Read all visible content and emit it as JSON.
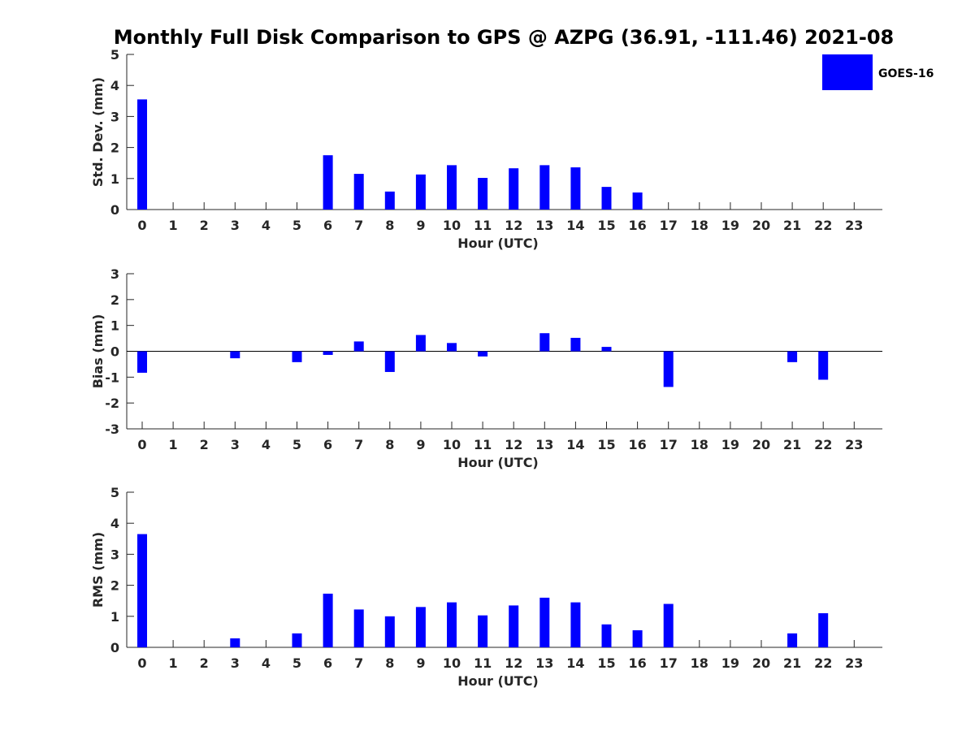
{
  "figure": {
    "title": "Monthly Full Disk Comparison to GPS @ AZPG (36.91, -111.46) 2021-08"
  },
  "legend": {
    "label": "GOES-16",
    "color": "#0000ff"
  },
  "chart_data": [
    {
      "type": "bar",
      "ylabel": "Std. Dev. (mm)",
      "xlabel": "Hour (UTC)",
      "ylim": [
        0,
        5
      ],
      "yticks": [
        0,
        1,
        2,
        3,
        4,
        5
      ],
      "categories": [
        "0",
        "1",
        "2",
        "3",
        "4",
        "5",
        "6",
        "7",
        "8",
        "9",
        "10",
        "11",
        "12",
        "13",
        "14",
        "15",
        "16",
        "17",
        "18",
        "19",
        "20",
        "21",
        "22",
        "23"
      ],
      "series": [
        {
          "name": "GOES-16",
          "values": [
            3.55,
            0,
            0,
            0,
            0,
            0,
            1.75,
            1.15,
            0.58,
            1.13,
            1.43,
            1.02,
            1.33,
            1.43,
            1.36,
            0.73,
            0.55,
            0,
            0,
            0,
            0,
            0,
            0,
            0
          ]
        }
      ]
    },
    {
      "type": "bar",
      "ylabel": "Bias (mm)",
      "xlabel": "Hour (UTC)",
      "ylim": [
        -3,
        3
      ],
      "yticks": [
        -3,
        -2,
        -1,
        0,
        1,
        2,
        3
      ],
      "zero_line": true,
      "categories": [
        "0",
        "1",
        "2",
        "3",
        "4",
        "5",
        "6",
        "7",
        "8",
        "9",
        "10",
        "11",
        "12",
        "13",
        "14",
        "15",
        "16",
        "17",
        "18",
        "19",
        "20",
        "21",
        "22",
        "23"
      ],
      "series": [
        {
          "name": "GOES-16",
          "values": [
            -0.83,
            0,
            0,
            -0.27,
            0,
            -0.42,
            -0.14,
            0.38,
            -0.8,
            0.63,
            0.32,
            -0.2,
            0,
            0.7,
            0.52,
            0.17,
            0,
            -1.38,
            0,
            0,
            0,
            -0.42,
            -1.1,
            0
          ]
        }
      ]
    },
    {
      "type": "bar",
      "ylabel": "RMS (mm)",
      "xlabel": "Hour (UTC)",
      "ylim": [
        0,
        5
      ],
      "yticks": [
        0,
        1,
        2,
        3,
        4,
        5
      ],
      "categories": [
        "0",
        "1",
        "2",
        "3",
        "4",
        "5",
        "6",
        "7",
        "8",
        "9",
        "10",
        "11",
        "12",
        "13",
        "14",
        "15",
        "16",
        "17",
        "18",
        "19",
        "20",
        "21",
        "22",
        "23"
      ],
      "series": [
        {
          "name": "GOES-16",
          "values": [
            3.65,
            0,
            0,
            0.29,
            0,
            0.45,
            1.73,
            1.22,
            1.0,
            1.3,
            1.45,
            1.03,
            1.35,
            1.6,
            1.45,
            0.74,
            0.55,
            1.4,
            0,
            0,
            0,
            0.45,
            1.1,
            0
          ]
        }
      ]
    }
  ]
}
